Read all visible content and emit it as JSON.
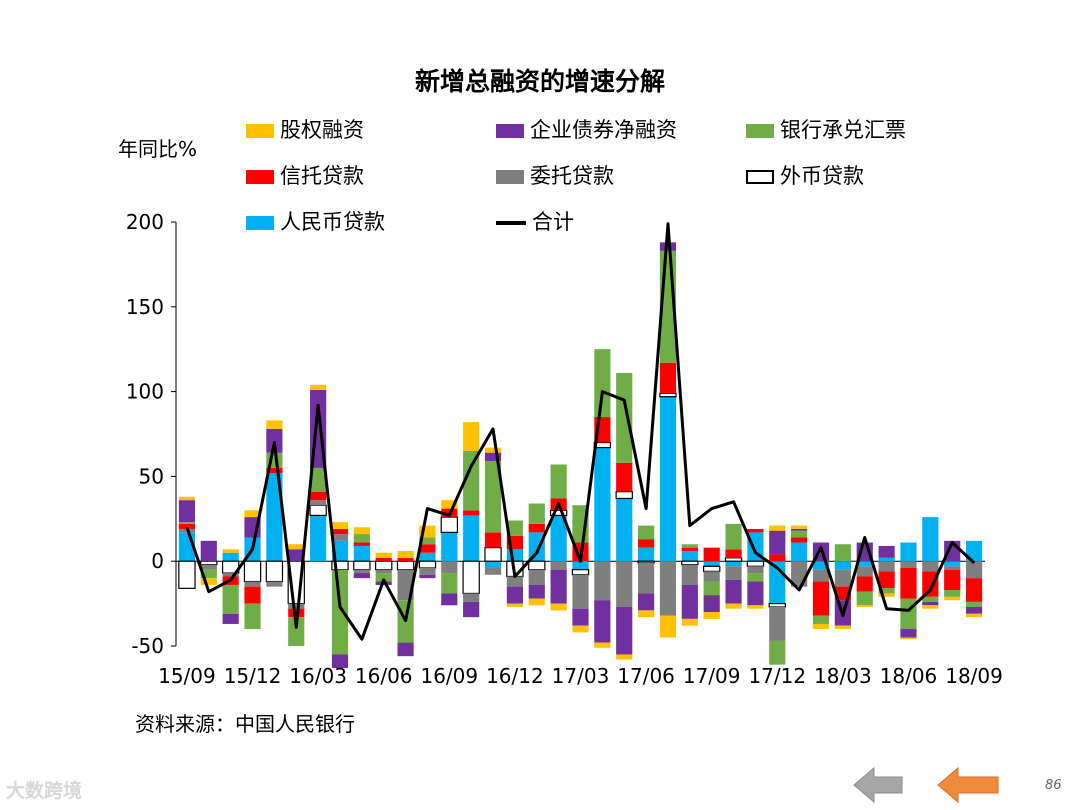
{
  "title": "新增总融资的增速分解",
  "ylabel_text": "年同比%",
  "source_text": "资料来源：中国人民银行",
  "watermark_text": "大数跨境",
  "page_number": "86",
  "nav": {
    "prev_icon": "arrow-left-icon",
    "next_icon": "arrow-left-icon",
    "prev_color": "#a6a6a6",
    "next_color": "#f08a3c"
  },
  "chart_data": {
    "type": "bar",
    "stacked": true,
    "title": "新增总融资的增速分解",
    "ylabel": "年同比%",
    "ylim": [
      -50,
      200
    ],
    "yticks": [
      -50,
      0,
      50,
      100,
      150,
      200
    ],
    "xtick_labels": [
      "15/09",
      "15/12",
      "16/03",
      "16/06",
      "16/09",
      "16/12",
      "17/03",
      "17/06",
      "17/09",
      "17/12",
      "18/03",
      "18/06",
      "18/09"
    ],
    "legend": [
      {
        "name": "股权融资",
        "color": "#ffc000"
      },
      {
        "name": "企业债券净融资",
        "color": "#7030a0"
      },
      {
        "name": "银行承兑汇票",
        "color": "#70ad47"
      },
      {
        "name": "信托贷款",
        "color": "#ff0000"
      },
      {
        "name": "委托贷款",
        "color": "#7f7f7f"
      },
      {
        "name": "外币贷款",
        "color": "#ffffff"
      },
      {
        "name": "人民币贷款",
        "color": "#00b0f0"
      },
      {
        "name": "合计",
        "color": "#000000"
      }
    ],
    "months": [
      "15/09",
      "15/10",
      "15/11",
      "15/12",
      "16/01",
      "16/02",
      "16/03",
      "16/04",
      "16/05",
      "16/06",
      "16/07",
      "16/08",
      "16/09",
      "16/10",
      "16/11",
      "16/12",
      "17/01",
      "17/02",
      "17/03",
      "17/04",
      "17/05",
      "17/06",
      "17/07",
      "17/08",
      "17/09",
      "17/10",
      "17/11",
      "17/12",
      "18/01",
      "18/02",
      "18/03",
      "18/04",
      "18/05",
      "18/06",
      "18/07",
      "18/08",
      "18/09"
    ],
    "series": [
      {
        "name": "人民币贷款",
        "values": [
          17,
          0,
          5,
          14,
          52,
          0,
          27,
          12,
          9,
          0,
          0,
          5,
          17,
          27,
          -4,
          7,
          17,
          27,
          -5,
          67,
          37,
          8,
          97,
          6,
          -3,
          -3,
          17,
          -25,
          11,
          -5,
          -5,
          -3,
          2,
          11,
          26,
          -3,
          12
        ]
      },
      {
        "name": "外币贷款",
        "values": [
          -16,
          -2,
          -7,
          -12,
          -12,
          -25,
          6,
          -5,
          -5,
          -5,
          -5,
          -4,
          9,
          -19,
          8,
          -9,
          -5,
          3,
          -3,
          3,
          4,
          -1,
          2,
          -2,
          -3,
          2,
          -3,
          -2,
          0,
          0,
          0,
          0,
          0,
          0,
          0,
          0,
          0
        ]
      },
      {
        "name": "委托贷款",
        "values": [
          2,
          -3,
          -2,
          -3,
          -3,
          -3,
          3,
          4,
          -2,
          -2,
          -18,
          -4,
          -7,
          -5,
          -4,
          -6,
          -9,
          -5,
          -20,
          -23,
          -27,
          -18,
          -32,
          -12,
          -6,
          -8,
          -4,
          -20,
          -15,
          -7,
          -10,
          -6,
          -6,
          -4,
          -6,
          -2,
          -10
        ]
      },
      {
        "name": "信托贷款",
        "values": [
          3,
          0,
          -5,
          -10,
          3,
          -5,
          5,
          3,
          2,
          2,
          2,
          5,
          5,
          3,
          9,
          8,
          5,
          7,
          11,
          15,
          17,
          5,
          18,
          2,
          8,
          5,
          2,
          4,
          3,
          -20,
          -8,
          -9,
          -10,
          -18,
          -15,
          -12,
          -14
        ]
      },
      {
        "name": "银行承兑汇票",
        "values": [
          1,
          -5,
          -17,
          -15,
          9,
          -17,
          14,
          -50,
          5,
          -5,
          -25,
          4,
          -12,
          35,
          42,
          9,
          12,
          20,
          22,
          40,
          53,
          8,
          66,
          2,
          -8,
          15,
          -5,
          -14,
          4,
          -5,
          10,
          -8,
          -3,
          -18,
          -3,
          -4,
          -3
        ]
      },
      {
        "name": "企业债券净融资",
        "values": [
          13,
          12,
          -6,
          12,
          14,
          7,
          46,
          -8,
          -3,
          -2,
          -8,
          -2,
          -7,
          -9,
          5,
          -10,
          -8,
          -20,
          -10,
          -25,
          -28,
          -10,
          5,
          -20,
          -10,
          -14,
          -14,
          14,
          1,
          11,
          -15,
          11,
          7,
          -5,
          -2,
          12,
          -4
        ]
      },
      {
        "name": "股权融资",
        "values": [
          2,
          -4,
          2,
          4,
          5,
          3,
          3,
          4,
          4,
          3,
          4,
          7,
          5,
          17,
          3,
          -2,
          -4,
          -4,
          -4,
          -3,
          -3,
          -4,
          -13,
          -4,
          -4,
          -3,
          -2,
          3,
          2,
          -3,
          -2,
          -1,
          -2,
          -1,
          -2,
          -2,
          -2
        ]
      }
    ],
    "total": [
      20,
      -18,
      -11,
      7,
      70,
      -39,
      92,
      -27,
      -46,
      -11,
      -35,
      31,
      27,
      56,
      78,
      -9,
      5,
      34,
      0,
      100,
      95,
      31,
      199,
      21,
      31,
      35,
      5,
      -4,
      -17,
      8,
      -32,
      14,
      -28,
      -29,
      -17,
      11,
      -1
    ],
    "grid": false
  }
}
